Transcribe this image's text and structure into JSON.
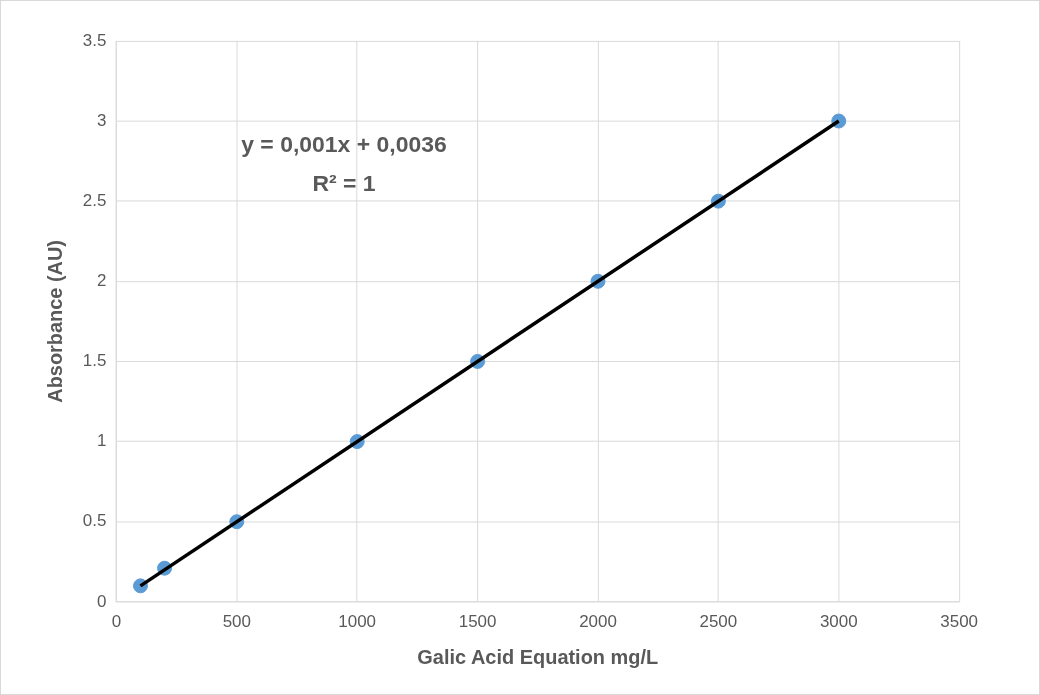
{
  "chart_data": {
    "type": "scatter",
    "xlabel": "Galic Acid Equation mg/L",
    "ylabel": "Absorbance (AU)",
    "x": [
      100,
      200,
      500,
      1000,
      1500,
      2000,
      2500,
      3000
    ],
    "series": [
      {
        "type": "scatter",
        "color": "#5b9bd5",
        "marker": "circle",
        "values": [
          0.1,
          0.21,
          0.5,
          1,
          1.5,
          2,
          2.5,
          3
        ]
      },
      {
        "type": "line",
        "color": "#000000",
        "marker": "none",
        "x": [
          100,
          3000
        ],
        "values": [
          0.1,
          3.0
        ]
      }
    ],
    "xlim": [
      0,
      3500
    ],
    "xticks": [
      0,
      500,
      1000,
      1500,
      2000,
      2500,
      3000,
      3500
    ],
    "ylim": [
      0,
      3.5
    ],
    "yticks": [
      0,
      0.5,
      1,
      1.5,
      2,
      2.5,
      3,
      3.5
    ],
    "grid": true,
    "legend": false,
    "annotations": [
      "y = 0,001x + 0,0036",
      "R² = 1"
    ]
  }
}
